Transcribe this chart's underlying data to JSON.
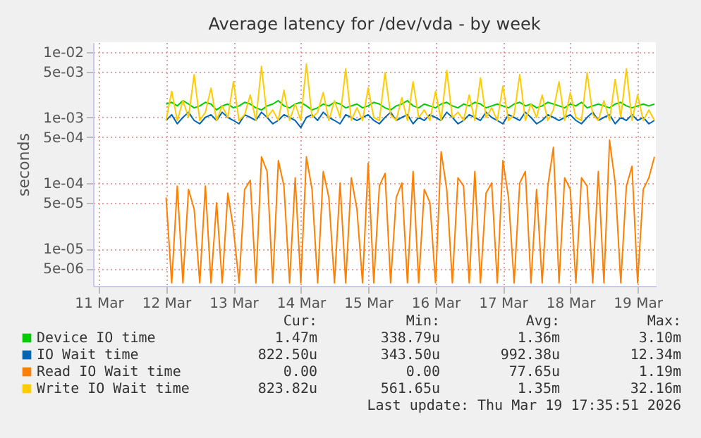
{
  "chart_data": {
    "type": "line",
    "title": "Average latency for /dev/vda - by week",
    "ylabel": "seconds",
    "log": "y",
    "grid": true,
    "legend": "bottom",
    "xlim": [
      "2026-03-10T22:00",
      "2026-03-19T06:30"
    ],
    "xticks": [
      {
        "value": "2026-03-11T00:00",
        "label": "11 Mar"
      },
      {
        "value": "2026-03-12T00:00",
        "label": "12 Mar"
      },
      {
        "value": "2026-03-13T00:00",
        "label": "13 Mar"
      },
      {
        "value": "2026-03-14T00:00",
        "label": "14 Mar"
      },
      {
        "value": "2026-03-15T00:00",
        "label": "15 Mar"
      },
      {
        "value": "2026-03-16T00:00",
        "label": "16 Mar"
      },
      {
        "value": "2026-03-17T00:00",
        "label": "17 Mar"
      },
      {
        "value": "2026-03-18T00:00",
        "label": "18 Mar"
      },
      {
        "value": "2026-03-19T00:00",
        "label": "19 Mar"
      }
    ],
    "ylim": [
      2.7e-06,
      0.014
    ],
    "yticks": [
      {
        "value": 0.01,
        "label": "1e-02"
      },
      {
        "value": 0.005,
        "label": "5e-03"
      },
      {
        "value": 0.001,
        "label": "1e-03"
      },
      {
        "value": 0.0005,
        "label": "5e-04"
      },
      {
        "value": 0.0001,
        "label": "1e-04"
      },
      {
        "value": 5e-05,
        "label": "5e-05"
      },
      {
        "value": 1e-05,
        "label": "1e-05"
      },
      {
        "value": 5e-06,
        "label": "5e-06"
      }
    ],
    "x": [
      "2026-03-12T00:00",
      "2026-03-12T02:00",
      "2026-03-12T04:00",
      "2026-03-12T06:00",
      "2026-03-12T08:00",
      "2026-03-12T10:00",
      "2026-03-12T12:00",
      "2026-03-12T14:00",
      "2026-03-12T16:00",
      "2026-03-12T18:00",
      "2026-03-12T20:00",
      "2026-03-12T22:00",
      "2026-03-13T00:00",
      "2026-03-13T02:00",
      "2026-03-13T04:00",
      "2026-03-13T06:00",
      "2026-03-13T08:00",
      "2026-03-13T10:00",
      "2026-03-13T12:00",
      "2026-03-13T14:00",
      "2026-03-13T16:00",
      "2026-03-13T18:00",
      "2026-03-13T20:00",
      "2026-03-13T22:00",
      "2026-03-14T00:00",
      "2026-03-14T02:00",
      "2026-03-14T04:00",
      "2026-03-14T06:00",
      "2026-03-14T08:00",
      "2026-03-14T10:00",
      "2026-03-14T12:00",
      "2026-03-14T14:00",
      "2026-03-14T16:00",
      "2026-03-14T18:00",
      "2026-03-14T20:00",
      "2026-03-14T22:00",
      "2026-03-15T00:00",
      "2026-03-15T02:00",
      "2026-03-15T04:00",
      "2026-03-15T06:00",
      "2026-03-15T08:00",
      "2026-03-15T10:00",
      "2026-03-15T12:00",
      "2026-03-15T14:00",
      "2026-03-15T16:00",
      "2026-03-15T18:00",
      "2026-03-15T20:00",
      "2026-03-15T22:00",
      "2026-03-16T00:00",
      "2026-03-16T02:00",
      "2026-03-16T04:00",
      "2026-03-16T06:00",
      "2026-03-16T08:00",
      "2026-03-16T10:00",
      "2026-03-16T12:00",
      "2026-03-16T14:00",
      "2026-03-16T16:00",
      "2026-03-16T18:00",
      "2026-03-16T20:00",
      "2026-03-16T22:00",
      "2026-03-17T00:00",
      "2026-03-17T02:00",
      "2026-03-17T04:00",
      "2026-03-17T06:00",
      "2026-03-17T08:00",
      "2026-03-17T10:00",
      "2026-03-17T12:00",
      "2026-03-17T14:00",
      "2026-03-17T16:00",
      "2026-03-17T18:00",
      "2026-03-17T20:00",
      "2026-03-17T22:00",
      "2026-03-18T00:00",
      "2026-03-18T02:00",
      "2026-03-18T04:00",
      "2026-03-18T06:00",
      "2026-03-18T08:00",
      "2026-03-18T10:00",
      "2026-03-18T12:00",
      "2026-03-18T14:00",
      "2026-03-18T16:00",
      "2026-03-18T18:00",
      "2026-03-18T20:00",
      "2026-03-18T22:00",
      "2026-03-19T00:00",
      "2026-03-19T02:00",
      "2026-03-19T04:00",
      "2026-03-19T06:00"
    ],
    "series": [
      {
        "name": "Device IO time",
        "color": "#00cc00",
        "values": [
          0.0016,
          0.0017,
          0.0015,
          0.0018,
          0.0016,
          0.0014,
          0.0015,
          0.0017,
          0.0016,
          0.0013,
          0.0015,
          0.0016,
          0.0014,
          0.0015,
          0.0017,
          0.0016,
          0.0014,
          0.0013,
          0.0015,
          0.0016,
          0.0018,
          0.0015,
          0.0014,
          0.0016,
          0.0017,
          0.0015,
          0.0013,
          0.0014,
          0.0016,
          0.0015,
          0.0017,
          0.0016,
          0.0014,
          0.0015,
          0.0016,
          0.0014,
          0.0015,
          0.0017,
          0.0016,
          0.0014,
          0.0013,
          0.0015,
          0.0016,
          0.0018,
          0.0015,
          0.0014,
          0.0016,
          0.0015,
          0.0014,
          0.0016,
          0.0017,
          0.0015,
          0.0014,
          0.0016,
          0.0015,
          0.0017,
          0.0016,
          0.0014,
          0.0015,
          0.0016,
          0.0015,
          0.0014,
          0.0016,
          0.0017,
          0.0015,
          0.0016,
          0.0014,
          0.0015,
          0.0017,
          0.0016,
          0.0015,
          0.0014,
          0.0016,
          0.0015,
          0.0017,
          0.0014,
          0.0015,
          0.0016,
          0.0015,
          0.0014,
          0.0016,
          0.0017,
          0.0015,
          0.0014,
          0.0015,
          0.0016,
          0.0015,
          0.0016
        ]
      },
      {
        "name": "IO Wait time",
        "color": "#0066b3",
        "values": [
          0.0009,
          0.0011,
          0.0008,
          0.001,
          0.0012,
          0.0009,
          0.0008,
          0.001,
          0.0011,
          0.0009,
          0.0012,
          0.001,
          0.0009,
          0.0008,
          0.0011,
          0.001,
          0.0009,
          0.0012,
          0.001,
          0.0008,
          0.0009,
          0.0011,
          0.001,
          0.0009,
          0.0007,
          0.001,
          0.0011,
          0.0009,
          0.0012,
          0.001,
          0.0009,
          0.0008,
          0.0011,
          0.001,
          0.0009,
          0.001,
          0.0011,
          0.0009,
          0.0008,
          0.001,
          0.0012,
          0.0009,
          0.001,
          0.0011,
          0.0008,
          0.001,
          0.0009,
          0.0011,
          0.001,
          0.0009,
          0.0012,
          0.001,
          0.0008,
          0.0009,
          0.0011,
          0.001,
          0.0009,
          0.0012,
          0.001,
          0.0009,
          0.0008,
          0.0011,
          0.001,
          0.0009,
          0.0012,
          0.001,
          0.0008,
          0.0009,
          0.0011,
          0.001,
          0.0009,
          0.001,
          0.0011,
          0.0009,
          0.0008,
          0.001,
          0.0012,
          0.0009,
          0.001,
          0.0011,
          0.0008,
          0.001,
          0.0009,
          0.0011,
          0.0009,
          0.001,
          0.0008,
          0.0009
        ]
      },
      {
        "name": "Read IO Wait time",
        "color": "#ff8000",
        "values": [
          6e-05,
          3e-06,
          9e-05,
          3e-06,
          8e-05,
          4e-05,
          3e-06,
          9e-05,
          3e-06,
          5e-05,
          3e-06,
          7e-05,
          2e-05,
          3e-06,
          8e-05,
          0.00011,
          3e-06,
          0.00025,
          0.00015,
          3e-06,
          0.00022,
          9e-05,
          3e-06,
          0.00012,
          3e-06,
          0.00025,
          8e-05,
          3e-06,
          0.00015,
          6e-05,
          3e-06,
          0.0001,
          3e-06,
          0.00012,
          4e-05,
          3e-06,
          0.0002,
          3e-06,
          9e-05,
          0.00014,
          3e-06,
          6e-05,
          0.0001,
          3e-06,
          0.00015,
          3e-06,
          8e-05,
          5e-05,
          3e-06,
          0.0003,
          8e-05,
          3e-06,
          0.00012,
          9e-05,
          3e-06,
          0.00015,
          3e-06,
          7e-05,
          0.0001,
          3e-06,
          0.00022,
          6e-05,
          3e-06,
          0.0001,
          0.00015,
          3e-06,
          8e-05,
          3e-06,
          9e-05,
          0.00035,
          3e-06,
          0.00012,
          8e-05,
          3e-06,
          0.00012,
          9e-05,
          3e-06,
          0.00015,
          3e-06,
          0.00045,
          0.0001,
          3e-06,
          9e-05,
          0.00018,
          3e-06,
          8e-05,
          0.00012,
          0.00025
        ]
      },
      {
        "name": "Write IO Wait time",
        "color": "#ffcc00",
        "values": [
          0.0009,
          0.0025,
          0.0009,
          0.0018,
          0.001,
          0.0045,
          0.0009,
          0.0012,
          0.0028,
          0.0009,
          0.0015,
          0.001,
          0.0035,
          0.0009,
          0.0011,
          0.0022,
          0.0009,
          0.006,
          0.001,
          0.0013,
          0.0009,
          0.0026,
          0.0009,
          0.0016,
          0.0009,
          0.0065,
          0.001,
          0.0012,
          0.0024,
          0.0009,
          0.0018,
          0.001,
          0.0055,
          0.0009,
          0.0014,
          0.0009,
          0.0028,
          0.001,
          0.0009,
          0.0048,
          0.0011,
          0.0009,
          0.002,
          0.0009,
          0.0035,
          0.001,
          0.0013,
          0.0009,
          0.0025,
          0.0009,
          0.0052,
          0.001,
          0.0012,
          0.0009,
          0.0022,
          0.0009,
          0.004,
          0.001,
          0.0014,
          0.0009,
          0.003,
          0.0009,
          0.0011,
          0.0045,
          0.0009,
          0.0016,
          0.001,
          0.0022,
          0.0009,
          0.0013,
          0.0035,
          0.0009,
          0.0024,
          0.001,
          0.0009,
          0.0048,
          0.0011,
          0.0009,
          0.0018,
          0.0009,
          0.0038,
          0.001,
          0.0055,
          0.0009,
          0.0022,
          0.0009,
          0.0013,
          0.0009
        ]
      }
    ],
    "annotations": [
      "Cur:",
      "Min:",
      "Avg:",
      "Max:",
      "1.47m",
      "338.79u",
      "1.36m",
      "3.10m",
      "822.50u",
      "343.50u",
      "992.38u",
      "12.34m",
      "0.00",
      "0.00",
      "77.65u",
      "1.19m",
      "823.82u",
      "561.65u",
      "1.35m",
      "32.16m",
      "Last update: Thu Mar 19 17:35:51 2026"
    ]
  }
}
